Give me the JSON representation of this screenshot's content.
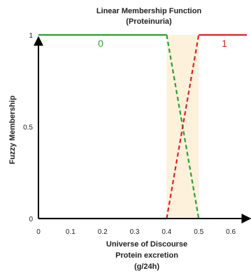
{
  "chart_data": {
    "type": "line",
    "title": [
      "Linear Membership Function",
      "(Proteinuria)"
    ],
    "xlabel": [
      "Universe of Discourse",
      "Protein excretion",
      "(g/24h)"
    ],
    "ylabel": "Fuzzy Membership",
    "xlim": [
      0,
      0.65
    ],
    "ylim": [
      0,
      1
    ],
    "xticks": [
      0,
      0.1,
      0.2,
      0.3,
      0.4,
      0.5,
      0.6
    ],
    "xtick_labels": [
      "0",
      "0.1",
      "0.2",
      "0.3",
      "0.4",
      "0.5",
      "0.6"
    ],
    "yticks": [
      0,
      0.5,
      1
    ],
    "ytick_labels": [
      "0",
      "0.5",
      "1"
    ],
    "highlight_band": {
      "x": [
        0.4,
        0.5
      ],
      "color": "#fdf1dc"
    },
    "series": [
      {
        "name": "0",
        "color": "#2ca02c",
        "segments": [
          {
            "style": "solid",
            "x": [
              0,
              0.4
            ],
            "y": [
              1,
              1
            ]
          },
          {
            "style": "dashed",
            "x": [
              0.4,
              0.5
            ],
            "y": [
              1,
              0
            ]
          }
        ]
      },
      {
        "name": "1",
        "color": "#e02020",
        "segments": [
          {
            "style": "solid",
            "x": [
              0,
              0.4
            ],
            "y": [
              0,
              0
            ]
          },
          {
            "style": "dashed",
            "x": [
              0.4,
              0.5
            ],
            "y": [
              0,
              1
            ]
          },
          {
            "style": "solid",
            "x": [
              0.5,
              0.65
            ],
            "y": [
              1,
              1
            ]
          }
        ]
      }
    ],
    "grid": false,
    "legend": "none"
  }
}
